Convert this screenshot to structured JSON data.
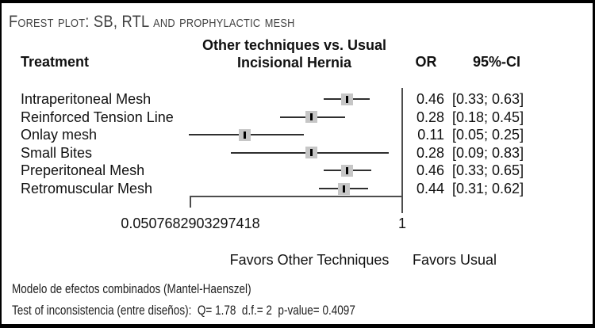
{
  "title": "Forest plot: SB, RTL and prophylactic mesh",
  "header": {
    "treatment": "Treatment",
    "comparison_line1": "Other techniques vs. Usual",
    "comparison_line2": "Incisional Hernia",
    "or": "OR",
    "ci": "95%-CI"
  },
  "axis": {
    "min_label": "0.0507682903297418",
    "ref_label": "1"
  },
  "favors": {
    "left": "Favors Other Techniques",
    "right": "Favors Usual"
  },
  "footnotes": {
    "line1": "Modelo de efectos combinados (Mantel-Haenszel)",
    "line2": "Test of inconsistencia (entre diseños):  Q= 1.78  d.f.= 2  p-value= 0.4097"
  },
  "colors": {
    "marker_fill": "#c6c6c6",
    "ci_line": "#2f2f2f",
    "axis_line": "#4d4d4d",
    "text": "#111111",
    "title_text": "#414141"
  },
  "chart_data": {
    "type": "forest",
    "scale": "log10",
    "x_min": 0.0507682903297418,
    "x_ref": 1,
    "x_min_label": "0.0507682903297418",
    "x_ref_label": "1",
    "effect_measure": "OR",
    "rows": [
      {
        "treatment": "Intraperitoneal Mesh",
        "or": 0.46,
        "ci_low": 0.33,
        "ci_high": 0.63,
        "or_label": "0.46",
        "ci_label": "[0.33; 0.63]"
      },
      {
        "treatment": "Reinforced Tension Line",
        "or": 0.28,
        "ci_low": 0.18,
        "ci_high": 0.45,
        "or_label": "0.28",
        "ci_label": "[0.18; 0.45]"
      },
      {
        "treatment": "Onlay mesh",
        "or": 0.11,
        "ci_low": 0.05,
        "ci_high": 0.25,
        "or_label": "0.11",
        "ci_label": "[0.05; 0.25]"
      },
      {
        "treatment": "Small Bites",
        "or": 0.28,
        "ci_low": 0.09,
        "ci_high": 0.83,
        "or_label": "0.28",
        "ci_label": "[0.09; 0.83]"
      },
      {
        "treatment": "Preperitoneal Mesh",
        "or": 0.46,
        "ci_low": 0.33,
        "ci_high": 0.65,
        "or_label": "0.46",
        "ci_label": "[0.33; 0.65]"
      },
      {
        "treatment": "Retromuscular Mesh",
        "or": 0.44,
        "ci_low": 0.31,
        "ci_high": 0.62,
        "or_label": "0.44",
        "ci_label": "[0.31; 0.62]"
      }
    ]
  }
}
